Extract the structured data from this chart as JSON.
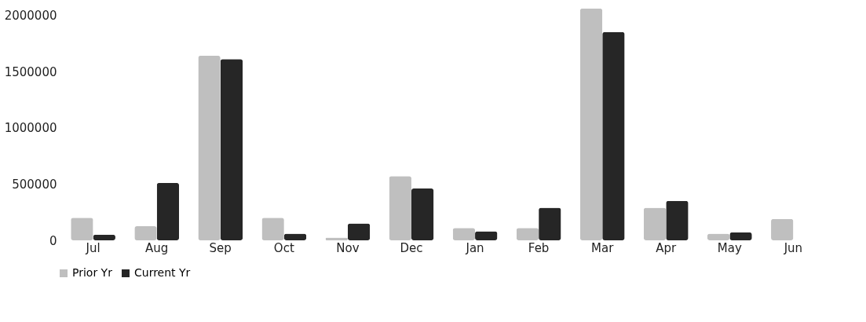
{
  "chart_data": {
    "type": "bar",
    "categories": [
      "Jul",
      "Aug",
      "Sep",
      "Oct",
      "Nov",
      "Dec",
      "Jan",
      "Feb",
      "Mar",
      "Apr",
      "May",
      "Jun"
    ],
    "series": [
      {
        "name": "Prior Yr",
        "color": "#bfbfbf",
        "values": [
          200000,
          125000,
          1640000,
          200000,
          25000,
          570000,
          110000,
          110000,
          2060000,
          290000,
          60000,
          190000
        ]
      },
      {
        "name": "Current Yr",
        "color": "#262626",
        "values": [
          50000,
          510000,
          1610000,
          60000,
          150000,
          460000,
          80000,
          290000,
          1850000,
          350000,
          70000,
          null
        ]
      }
    ],
    "ylim": [
      0,
      2100000
    ],
    "yticks": [
      0,
      500000,
      1000000,
      1500000,
      2000000
    ],
    "grid": false,
    "legend": "bottom"
  }
}
